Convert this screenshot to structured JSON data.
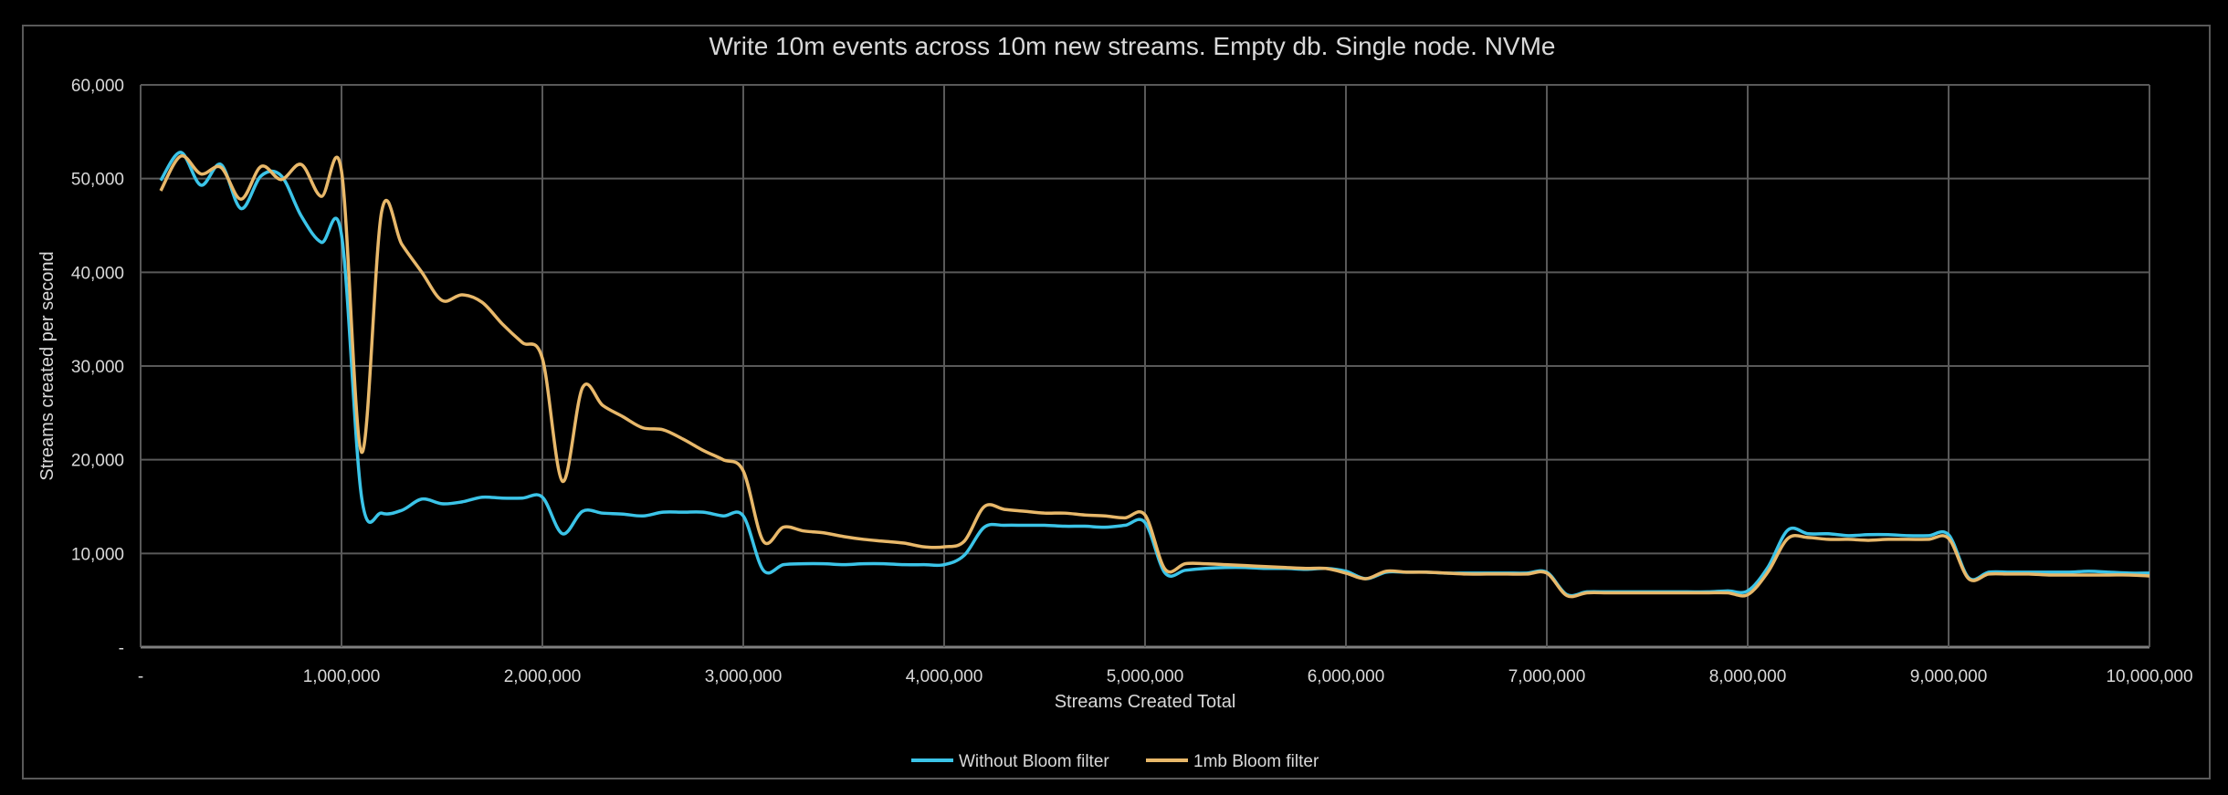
{
  "chart_data": {
    "type": "line",
    "title": "Write 10m events across 10m new streams. Empty db. Single node. NVMe",
    "xlabel": "Streams Created Total",
    "ylabel": "Streams created per second",
    "xlim": [
      0,
      10000000
    ],
    "ylim": [
      0,
      60000
    ],
    "grid": true,
    "smooth": true,
    "legend_position": "bottom",
    "x_ticks": [
      0,
      1000000,
      2000000,
      3000000,
      4000000,
      5000000,
      6000000,
      7000000,
      8000000,
      9000000,
      10000000
    ],
    "x_tick_labels": [
      "-",
      "1,000,000",
      "2,000,000",
      "3,000,000",
      "4,000,000",
      "5,000,000",
      "6,000,000",
      "7,000,000",
      "8,000,000",
      "9,000,000",
      "10,000,000"
    ],
    "y_ticks": [
      0,
      10000,
      20000,
      30000,
      40000,
      50000,
      60000
    ],
    "y_tick_labels": [
      "-",
      "10,000",
      "20,000",
      "30,000",
      "40,000",
      "50,000",
      "60,000"
    ],
    "x_start": 100000,
    "x_step": 100000,
    "series": [
      {
        "name": "Without Bloom filter",
        "color": "#3bc4e8",
        "values": [
          49800,
          52800,
          49300,
          51500,
          46800,
          50300,
          50300,
          46000,
          43200,
          44000,
          16000,
          14300,
          14600,
          15800,
          15300,
          15500,
          16000,
          15900,
          15900,
          16000,
          12100,
          14500,
          14300,
          14200,
          14000,
          14400,
          14400,
          14400,
          14000,
          14000,
          8200,
          8800,
          8900,
          8900,
          8800,
          8900,
          8900,
          8800,
          8800,
          8800,
          9800,
          12800,
          13000,
          13000,
          13000,
          12900,
          12900,
          12800,
          13000,
          13300,
          7900,
          8200,
          8400,
          8500,
          8500,
          8400,
          8400,
          8300,
          8400,
          8100,
          7300,
          8000,
          8000,
          8000,
          7900,
          7900,
          7900,
          7900,
          7900,
          8000,
          5600,
          5900,
          5900,
          5900,
          5900,
          5900,
          5900,
          5900,
          6000,
          6000,
          8500,
          12500,
          12100,
          12100,
          11900,
          12000,
          12000,
          11900,
          11900,
          12000,
          7400,
          8000,
          8000,
          8000,
          8000,
          8000,
          8100,
          8000,
          7900,
          7900
        ]
      },
      {
        "name": "1mb Bloom filter",
        "color": "#e8b86a",
        "values": [
          48700,
          52400,
          50500,
          51200,
          47800,
          51300,
          49900,
          51500,
          48100,
          50800,
          20800,
          46500,
          43000,
          40000,
          37000,
          37600,
          36800,
          34500,
          32500,
          30800,
          17700,
          27700,
          25800,
          24600,
          23400,
          23200,
          22200,
          21000,
          20000,
          18800,
          11300,
          12800,
          12400,
          12200,
          11800,
          11500,
          11300,
          11100,
          10700,
          10700,
          11300,
          15000,
          14700,
          14500,
          14300,
          14300,
          14100,
          14000,
          13800,
          14100,
          8300,
          8900,
          8900,
          8800,
          8700,
          8600,
          8500,
          8400,
          8400,
          7900,
          7300,
          8100,
          8000,
          8000,
          7900,
          7800,
          7800,
          7800,
          7800,
          7900,
          5500,
          5800,
          5800,
          5800,
          5800,
          5800,
          5800,
          5800,
          5800,
          5600,
          8000,
          11600,
          11700,
          11500,
          11500,
          11400,
          11500,
          11500,
          11500,
          11600,
          7300,
          7800,
          7800,
          7800,
          7700,
          7700,
          7700,
          7700,
          7700,
          7600
        ]
      }
    ]
  }
}
